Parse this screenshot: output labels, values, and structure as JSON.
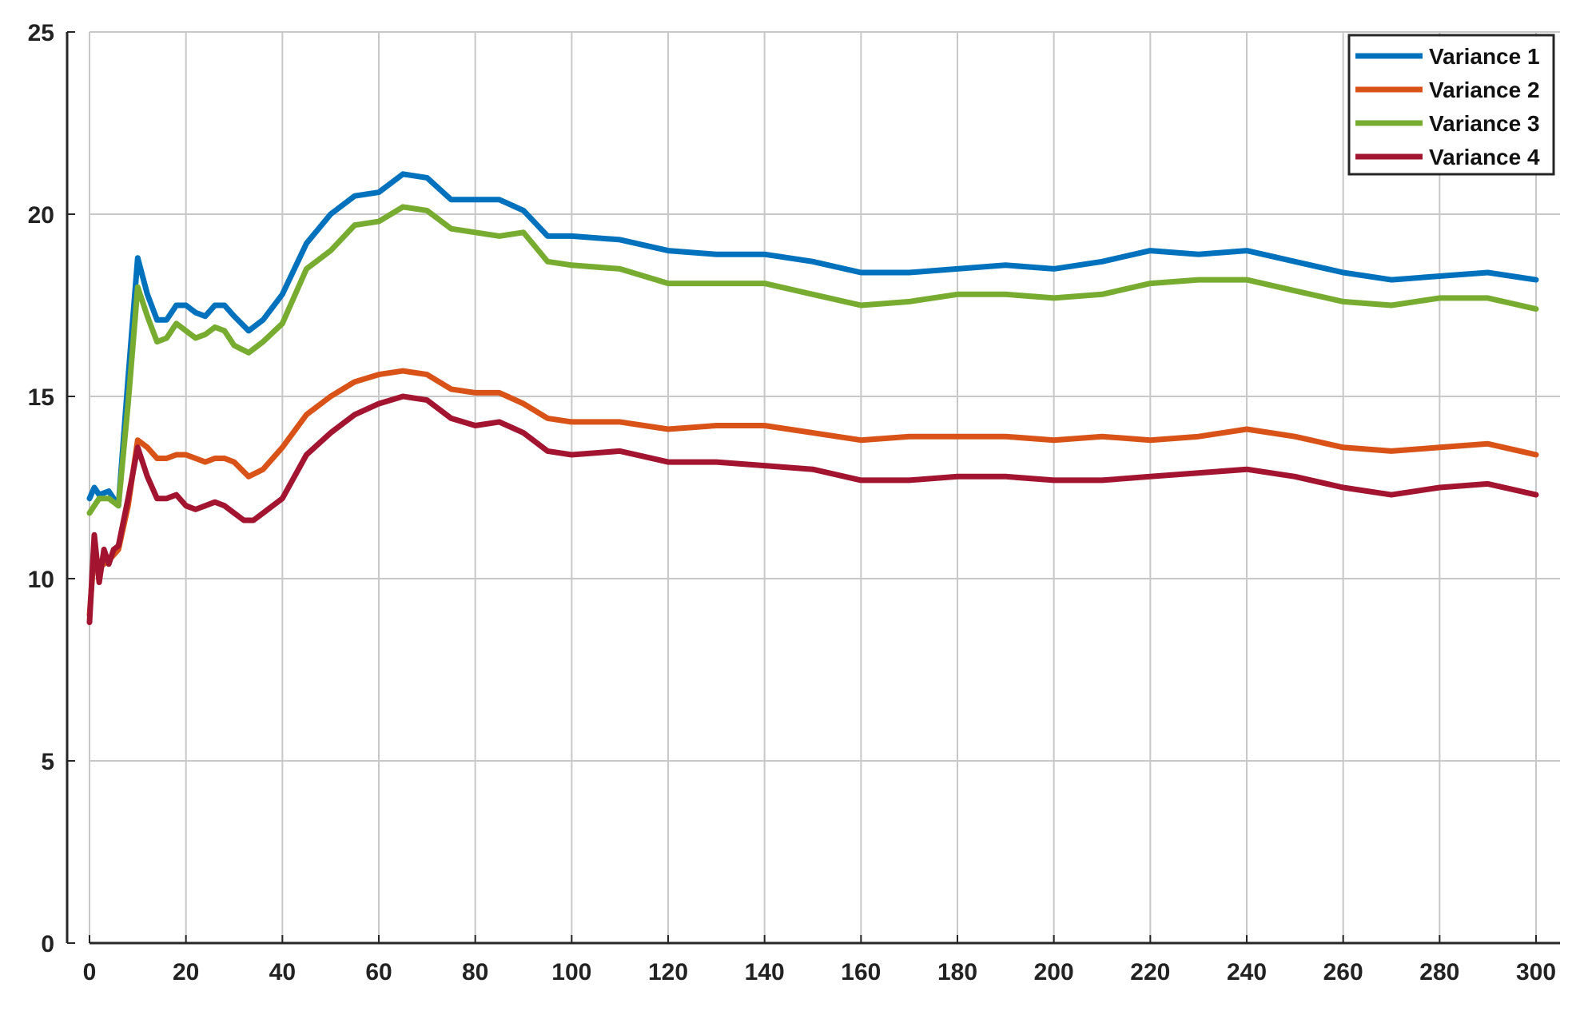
{
  "chart_data": {
    "type": "line",
    "title": "",
    "xlabel": "",
    "ylabel": "",
    "xlim": [
      0,
      300
    ],
    "ylim": [
      0,
      25
    ],
    "xticks": [
      0,
      20,
      40,
      60,
      80,
      100,
      120,
      140,
      160,
      180,
      200,
      220,
      240,
      260,
      280,
      300
    ],
    "yticks": [
      0,
      5,
      10,
      15,
      20,
      25
    ],
    "grid": true,
    "legend_position": "top-right",
    "series": [
      {
        "name": "Variance 1",
        "color": "#0072BD",
        "x": [
          0,
          1,
          2,
          4,
          6,
          8,
          10,
          12,
          14,
          16,
          18,
          20,
          22,
          24,
          26,
          28,
          30,
          33,
          36,
          40,
          45,
          50,
          55,
          60,
          65,
          70,
          75,
          80,
          85,
          90,
          95,
          100,
          110,
          120,
          130,
          140,
          150,
          160,
          170,
          180,
          190,
          200,
          210,
          220,
          230,
          240,
          250,
          260,
          270,
          280,
          290,
          300
        ],
        "y": [
          12.2,
          12.5,
          12.3,
          12.4,
          12.0,
          15.5,
          18.8,
          17.8,
          17.1,
          17.1,
          17.5,
          17.5,
          17.3,
          17.2,
          17.5,
          17.5,
          17.2,
          16.8,
          17.1,
          17.8,
          19.2,
          20.0,
          20.5,
          20.6,
          21.1,
          21.0,
          20.4,
          20.4,
          20.4,
          20.1,
          19.4,
          19.4,
          19.3,
          19.0,
          18.9,
          18.9,
          18.7,
          18.4,
          18.4,
          18.5,
          18.6,
          18.5,
          18.7,
          19.0,
          18.9,
          19.0,
          18.7,
          18.4,
          18.2,
          18.3,
          18.4,
          18.2
        ]
      },
      {
        "name": "Variance 2",
        "color": "#D95319",
        "x": [
          0,
          1,
          2,
          4,
          6,
          8,
          10,
          12,
          14,
          16,
          18,
          20,
          22,
          24,
          26,
          28,
          30,
          33,
          36,
          40,
          45,
          50,
          55,
          60,
          65,
          70,
          75,
          80,
          85,
          90,
          95,
          100,
          110,
          120,
          130,
          140,
          150,
          160,
          170,
          180,
          190,
          200,
          210,
          220,
          230,
          240,
          250,
          260,
          270,
          280,
          290,
          300
        ],
        "y": [
          9.0,
          10.8,
          10.3,
          10.5,
          10.8,
          12.0,
          13.8,
          13.6,
          13.3,
          13.3,
          13.4,
          13.4,
          13.3,
          13.2,
          13.3,
          13.3,
          13.2,
          12.8,
          13.0,
          13.6,
          14.5,
          15.0,
          15.4,
          15.6,
          15.7,
          15.6,
          15.2,
          15.1,
          15.1,
          14.8,
          14.4,
          14.3,
          14.3,
          14.1,
          14.2,
          14.2,
          14.0,
          13.8,
          13.9,
          13.9,
          13.9,
          13.8,
          13.9,
          13.8,
          13.9,
          14.1,
          13.9,
          13.6,
          13.5,
          13.6,
          13.7,
          13.4
        ]
      },
      {
        "name": "Variance 3",
        "color": "#77AC30",
        "x": [
          0,
          1,
          2,
          4,
          6,
          8,
          10,
          12,
          14,
          16,
          18,
          20,
          22,
          24,
          26,
          28,
          30,
          33,
          36,
          40,
          45,
          50,
          55,
          60,
          65,
          70,
          75,
          80,
          85,
          90,
          95,
          100,
          110,
          120,
          130,
          140,
          150,
          160,
          170,
          180,
          190,
          200,
          210,
          220,
          230,
          240,
          250,
          260,
          270,
          280,
          290,
          300
        ],
        "y": [
          11.8,
          12.0,
          12.2,
          12.2,
          12.0,
          14.8,
          18.0,
          17.2,
          16.5,
          16.6,
          17.0,
          16.8,
          16.6,
          16.7,
          16.9,
          16.8,
          16.4,
          16.2,
          16.5,
          17.0,
          18.5,
          19.0,
          19.7,
          19.8,
          20.2,
          20.1,
          19.6,
          19.5,
          19.4,
          19.5,
          18.7,
          18.6,
          18.5,
          18.1,
          18.1,
          18.1,
          17.8,
          17.5,
          17.6,
          17.8,
          17.8,
          17.7,
          17.8,
          18.1,
          18.2,
          18.2,
          17.9,
          17.6,
          17.5,
          17.7,
          17.7,
          17.4
        ]
      },
      {
        "name": "Variance 4",
        "color": "#A2142F",
        "x": [
          0,
          0.5,
          1,
          2,
          3,
          4,
          5,
          6,
          8,
          10,
          12,
          14,
          16,
          18,
          20,
          22,
          24,
          26,
          28,
          30,
          32,
          34,
          36,
          40,
          45,
          50,
          55,
          60,
          65,
          70,
          75,
          80,
          85,
          90,
          95,
          100,
          110,
          120,
          130,
          140,
          150,
          160,
          170,
          180,
          190,
          200,
          210,
          220,
          230,
          240,
          250,
          260,
          270,
          280,
          290,
          300
        ],
        "y": [
          8.8,
          10.0,
          11.2,
          9.9,
          10.8,
          10.4,
          10.8,
          10.9,
          12.2,
          13.6,
          12.8,
          12.2,
          12.2,
          12.3,
          12.0,
          11.9,
          12.0,
          12.1,
          12.0,
          11.8,
          11.6,
          11.6,
          11.8,
          12.2,
          13.4,
          14.0,
          14.5,
          14.8,
          15.0,
          14.9,
          14.4,
          14.2,
          14.3,
          14.0,
          13.5,
          13.4,
          13.5,
          13.2,
          13.2,
          13.1,
          13.0,
          12.7,
          12.7,
          12.8,
          12.8,
          12.7,
          12.7,
          12.8,
          12.9,
          13.0,
          12.8,
          12.5,
          12.3,
          12.5,
          12.6,
          12.3
        ]
      }
    ]
  }
}
